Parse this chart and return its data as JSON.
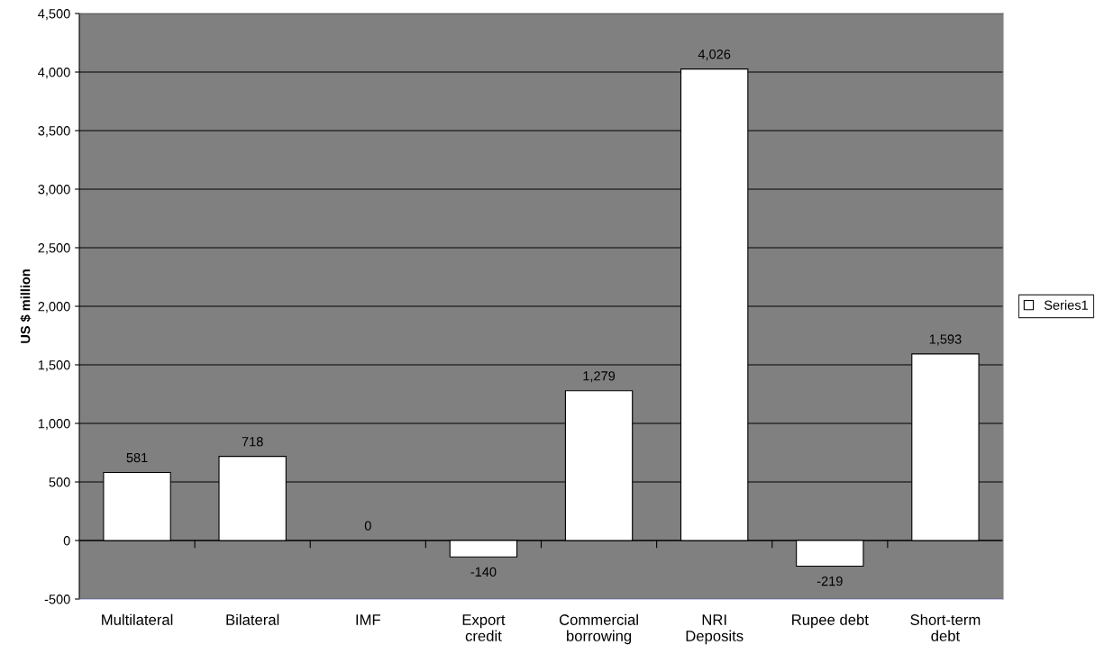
{
  "chart_data": {
    "type": "bar",
    "ylabel": "US $ million",
    "categories": [
      "Multilateral",
      "Bilateral",
      "IMF",
      "Export\ncredit",
      "Commercial\nborrowing",
      "NRI\nDeposits",
      "Rupee debt",
      "Short-term\ndebt"
    ],
    "series": [
      {
        "name": "Series1",
        "color": "#ffffff",
        "values": [
          581,
          718,
          0,
          -140,
          1279,
          4026,
          -219,
          1593
        ]
      }
    ],
    "value_labels": [
      "581",
      "718",
      "0",
      "-140",
      "1,279",
      "4,026",
      "-219",
      "1,593"
    ],
    "ylim": [
      -500,
      4500
    ],
    "yticks": [
      {
        "value": -500,
        "label": "-500"
      },
      {
        "value": 0,
        "label": "0"
      },
      {
        "value": 500,
        "label": "500"
      },
      {
        "value": 1000,
        "label": "1,000"
      },
      {
        "value": 1500,
        "label": "1,500"
      },
      {
        "value": 2000,
        "label": "2,000"
      },
      {
        "value": 2500,
        "label": "2,500"
      },
      {
        "value": 3000,
        "label": "3,000"
      },
      {
        "value": 3500,
        "label": "3,500"
      },
      {
        "value": 4000,
        "label": "4,000"
      },
      {
        "value": 4500,
        "label": "4,500"
      }
    ],
    "grid": "y",
    "legend": "right"
  }
}
